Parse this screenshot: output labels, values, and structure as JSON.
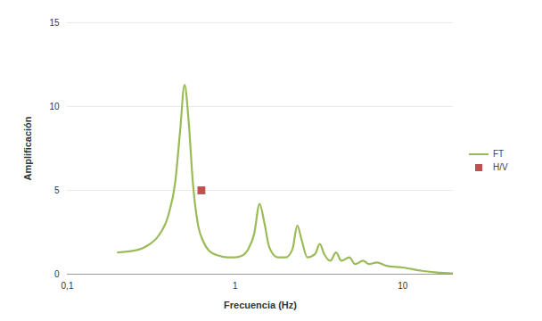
{
  "chart_data": {
    "type": "line",
    "x_label": "Frecuencia (Hz)",
    "y_label": "Amplificación",
    "log": "x",
    "grid": true,
    "legend": "right",
    "xlim": [
      0.1,
      20
    ],
    "xticks": [
      {
        "value": 0.1,
        "label": "0,1"
      },
      1,
      10
    ],
    "ylim": [
      0,
      15
    ],
    "yticks": [
      0,
      5,
      10,
      15
    ],
    "series": [
      {
        "name": "FT",
        "type": "line",
        "color": "#9bbb59",
        "x": [
          0.2,
          0.25,
          0.3,
          0.35,
          0.4,
          0.44,
          0.47,
          0.5,
          0.53,
          0.56,
          0.6,
          0.65,
          0.7,
          0.8,
          0.9,
          1.0,
          1.1,
          1.2,
          1.3,
          1.4,
          1.5,
          1.6,
          1.8,
          2.0,
          2.2,
          2.35,
          2.5,
          2.7,
          3.0,
          3.2,
          3.4,
          3.7,
          4.0,
          4.3,
          4.8,
          5.2,
          5.8,
          6.3,
          7.0,
          8.0,
          10,
          13,
          16,
          20
        ],
        "values": [
          1.3,
          1.4,
          1.7,
          2.3,
          3.5,
          5.5,
          8.5,
          11.3,
          9,
          5.5,
          3,
          1.9,
          1.4,
          1.1,
          1.0,
          1.0,
          1.1,
          1.5,
          2.4,
          4.2,
          3.0,
          1.6,
          1.0,
          1.0,
          1.5,
          2.9,
          2.0,
          1.0,
          1.2,
          1.8,
          1.2,
          0.8,
          1.3,
          0.8,
          1.0,
          0.6,
          0.8,
          0.6,
          0.7,
          0.5,
          0.4,
          0.2,
          0.1,
          0.05
        ]
      },
      {
        "name": "H/V",
        "type": "scatter",
        "marker": "square",
        "color": "#c0504d",
        "x": [
          0.63
        ],
        "values": [
          5
        ]
      }
    ]
  }
}
